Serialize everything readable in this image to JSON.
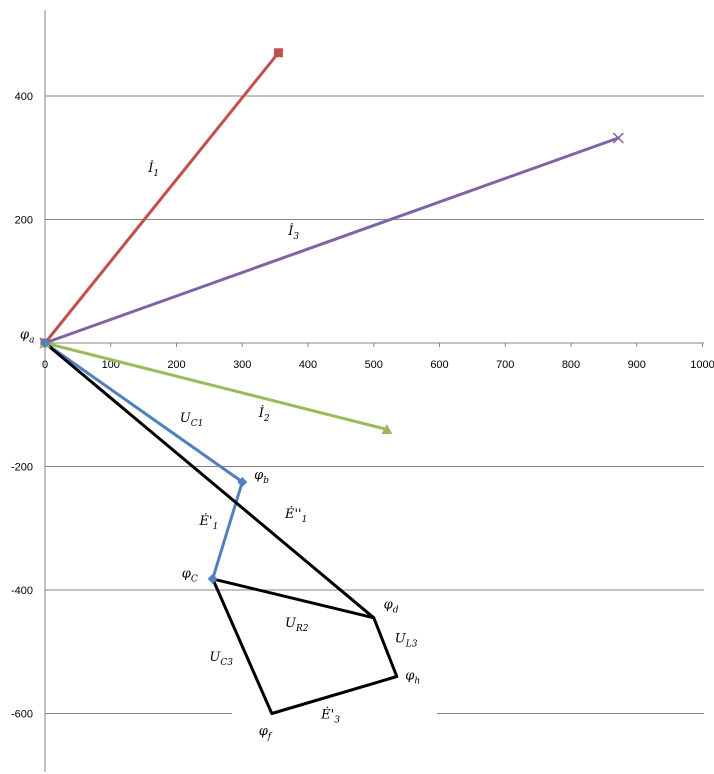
{
  "chart_data": {
    "type": "scatter",
    "xlim": [
      0,
      1000
    ],
    "ylim": [
      -650,
      550
    ],
    "x_ticks": [
      "0",
      "100",
      "200",
      "300",
      "400",
      "500",
      "600",
      "700",
      "800",
      "900",
      "1000"
    ],
    "y_ticks": [
      "400",
      "200",
      "-200",
      "-400",
      "-600"
    ],
    "grid": "horizontal",
    "series": [
      {
        "color": "#c0504d",
        "marker": "square",
        "points": [
          [
            0,
            0
          ],
          [
            355,
            470
          ]
        ]
      },
      {
        "color": "#8064a2",
        "marker": "x",
        "points": [
          [
            0,
            0
          ],
          [
            872,
            332
          ]
        ]
      },
      {
        "color": "#9bbb59",
        "marker": "triangle",
        "points": [
          [
            0,
            0
          ],
          [
            520,
            -140
          ]
        ]
      },
      {
        "color": "#4f81bd",
        "marker": "diamond",
        "points": [
          [
            0,
            0
          ],
          [
            300,
            -225
          ],
          [
            255,
            -382
          ]
        ]
      },
      {
        "color": "#000000",
        "marker": "none",
        "points": [
          [
            0,
            0
          ],
          [
            500,
            -445
          ],
          [
            535,
            -540
          ],
          [
            345,
            -600
          ],
          [
            255,
            -382
          ],
          [
            500,
            -445
          ]
        ]
      }
    ],
    "labels": [
      {
        "id": "phi-a",
        "main": "φ",
        "sub": "a",
        "x": -38,
        "y": 7
      },
      {
        "id": "i1",
        "main": "İ",
        "sub": "1",
        "x": 157,
        "y": 277
      },
      {
        "id": "i3",
        "main": "İ",
        "sub": "3",
        "x": 370,
        "y": 175
      },
      {
        "id": "i2",
        "main": "İ",
        "sub": "2",
        "x": 325,
        "y": -120
      },
      {
        "id": "uc1",
        "main": "U",
        "sub": "C1",
        "x": 205,
        "y": -128
      },
      {
        "id": "phi-b",
        "main": "φ",
        "sub": "b",
        "x": 318,
        "y": -220
      },
      {
        "id": "e1p",
        "main": "Ė'",
        "sub": "1",
        "x": 235,
        "y": -295
      },
      {
        "id": "e1pp",
        "main": "Ė''",
        "sub": "1",
        "x": 365,
        "y": -283
      },
      {
        "id": "phi-c",
        "main": "φ",
        "sub": "C",
        "x": 208,
        "y": -380
      },
      {
        "id": "phi-d",
        "main": "φ",
        "sub": "d",
        "x": 515,
        "y": -430
      },
      {
        "id": "ur2",
        "main": "U",
        "sub": "R2",
        "x": 365,
        "y": -460
      },
      {
        "id": "ul3",
        "main": "U",
        "sub": "L3",
        "x": 532,
        "y": -485
      },
      {
        "id": "uc3",
        "main": "U",
        "sub": "C3",
        "x": 250,
        "y": -515
      },
      {
        "id": "phi-h",
        "main": "φ",
        "sub": "h",
        "x": 548,
        "y": -545
      },
      {
        "id": "e3p",
        "main": "Ė'",
        "sub": "3",
        "x": 420,
        "y": -608
      },
      {
        "id": "phi-f",
        "main": "φ",
        "sub": "f",
        "x": 325,
        "y": -635
      }
    ]
  }
}
